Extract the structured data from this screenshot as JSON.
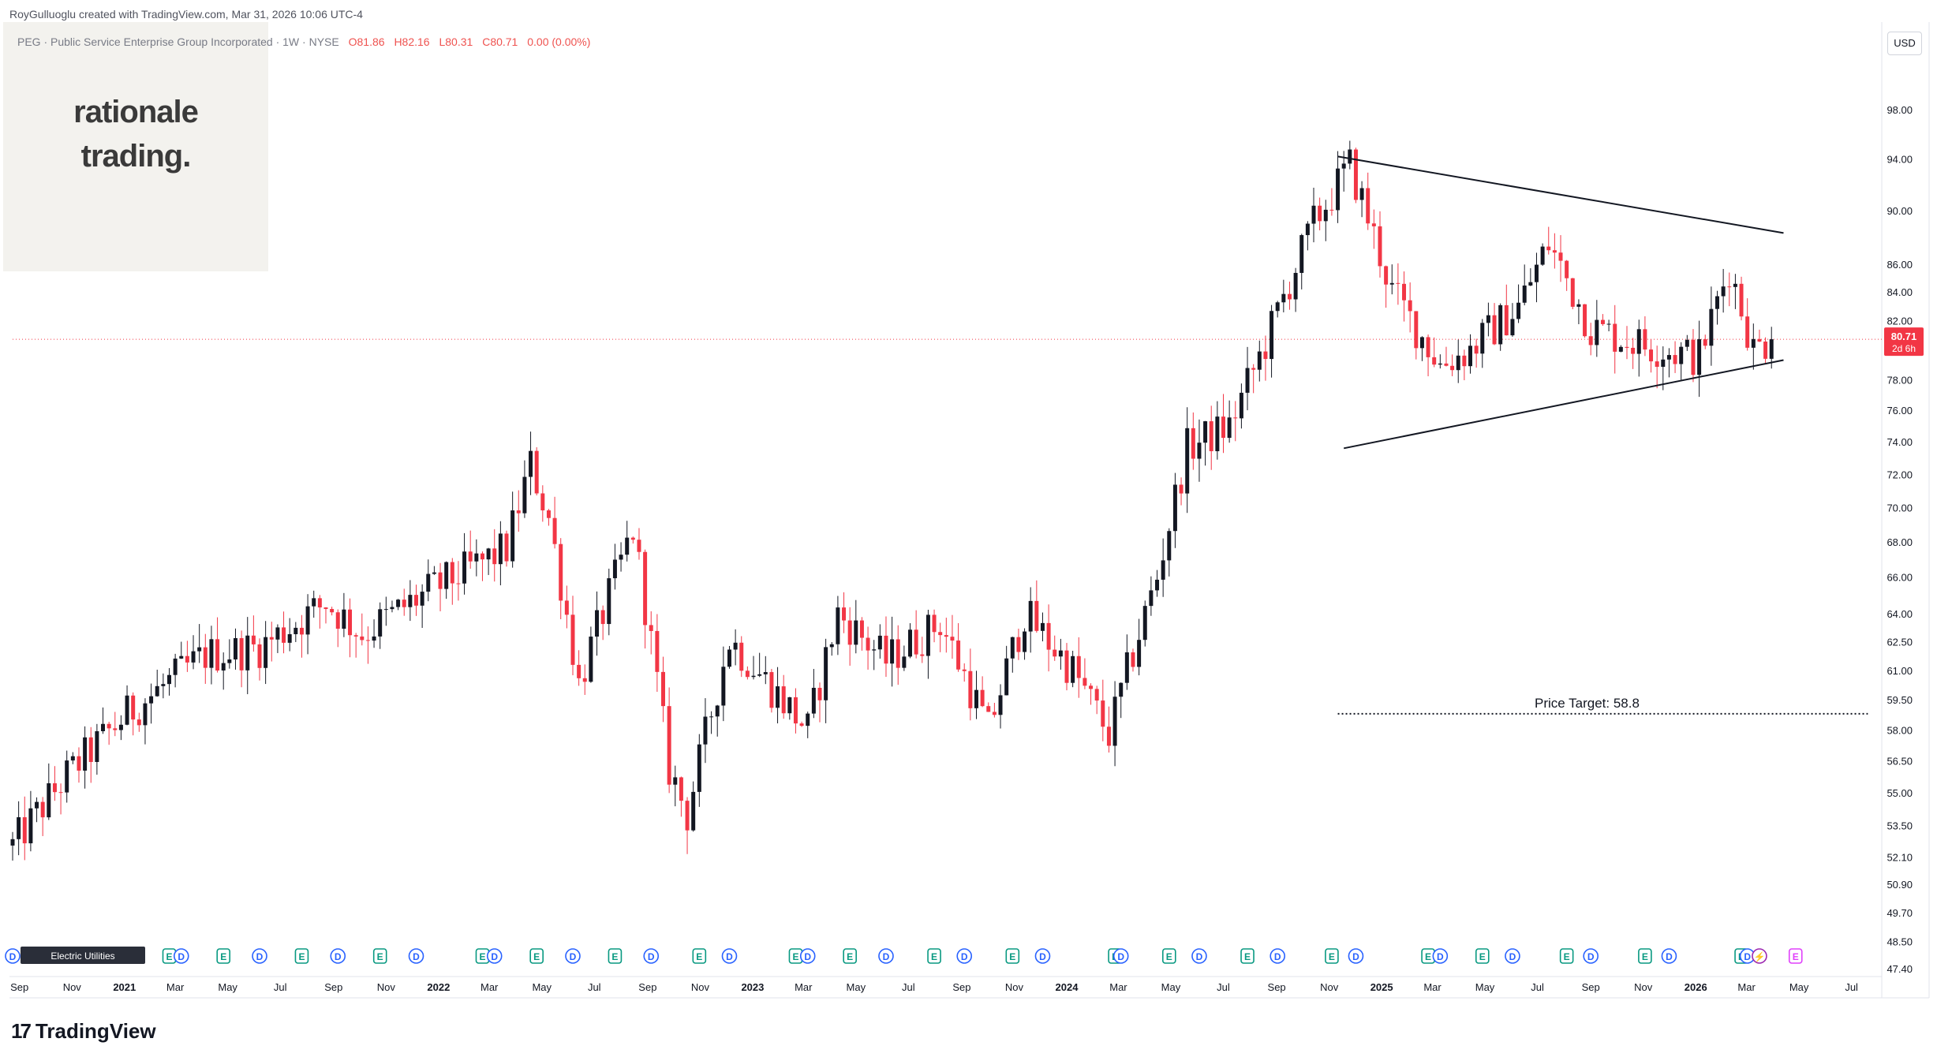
{
  "header": {
    "credit": "RoyGulluoglu created with TradingView.com, Mar 31, 2026 10:06 UTC-4",
    "symbol": "PEG · Public Service Enterprise Group Incorporated · 1W · NYSE",
    "ohlc": {
      "o": "O81.86",
      "h": "H82.16",
      "l": "L80.31",
      "c": "C80.71",
      "chg": "0.00 (0.00%)"
    }
  },
  "logo": {
    "line1": "rationale",
    "line2": "trading."
  },
  "currency": "USD",
  "price_badge": {
    "price": "80.71",
    "countdown": "2d 6h"
  },
  "footer": {
    "brand": "TradingView"
  },
  "events_label": "Electric Utilities",
  "annotation": {
    "text": "Price Target: 58.8"
  },
  "colors": {
    "up": "#131722",
    "down": "#f23645",
    "line": "#131722",
    "current": "#f23645"
  },
  "chart_data": {
    "type": "candlestick",
    "title": "",
    "xlabel": "",
    "ylabel": "",
    "ylim": [
      47.4,
      104.0
    ],
    "y_scale": "log",
    "grid": false,
    "y_ticks": [
      98.0,
      94.0,
      90.0,
      86.0,
      84.0,
      82.0,
      80.0,
      78.0,
      76.0,
      74.0,
      72.0,
      70.0,
      68.0,
      66.0,
      64.0,
      62.5,
      61.0,
      59.5,
      58.0,
      56.5,
      55.0,
      53.5,
      52.1,
      50.9,
      49.7,
      48.5,
      47.4
    ],
    "x_ticks": [
      "Sep",
      "Nov",
      "2021",
      "Mar",
      "May",
      "Jul",
      "Sep",
      "Nov",
      "2022",
      "Mar",
      "May",
      "Jul",
      "Sep",
      "Nov",
      "2023",
      "Mar",
      "May",
      "Jul",
      "Sep",
      "Nov",
      "2024",
      "Mar",
      "May",
      "Jul",
      "Sep",
      "Nov",
      "2025",
      "Mar",
      "May",
      "Jul",
      "Sep",
      "Nov",
      "2026",
      "Mar",
      "May",
      "Jul"
    ],
    "x_domain": [
      "2020-08-24",
      "2026-07-27"
    ],
    "anchors": [
      {
        "date": "2020-08-24",
        "close": 52.6
      },
      {
        "date": "2020-10-26",
        "close": 55.8
      },
      {
        "date": "2021-01-04",
        "close": 58.8
      },
      {
        "date": "2021-04-05",
        "close": 61.8
      },
      {
        "date": "2021-06-07",
        "close": 62.2
      },
      {
        "date": "2021-08-23",
        "close": 64.6
      },
      {
        "date": "2021-10-04",
        "close": 62.9
      },
      {
        "date": "2021-12-20",
        "close": 65.2
      },
      {
        "date": "2022-03-21",
        "close": 67.6
      },
      {
        "date": "2022-04-18",
        "close": 72.6
      },
      {
        "date": "2022-05-09",
        "close": 69.4
      },
      {
        "date": "2022-06-13",
        "close": 60.3
      },
      {
        "date": "2022-08-15",
        "close": 68.7
      },
      {
        "date": "2022-09-26",
        "close": 56.1
      },
      {
        "date": "2022-10-17",
        "close": 54.0
      },
      {
        "date": "2022-12-05",
        "close": 62.6
      },
      {
        "date": "2023-03-06",
        "close": 58.0
      },
      {
        "date": "2023-04-10",
        "close": 64.0
      },
      {
        "date": "2023-06-05",
        "close": 61.5
      },
      {
        "date": "2023-08-07",
        "close": 63.5
      },
      {
        "date": "2023-10-02",
        "close": 58.0
      },
      {
        "date": "2023-11-13",
        "close": 64.0
      },
      {
        "date": "2024-01-08",
        "close": 61.0
      },
      {
        "date": "2024-02-19",
        "close": 57.8
      },
      {
        "date": "2024-04-15",
        "close": 66.0
      },
      {
        "date": "2024-05-20",
        "close": 73.6
      },
      {
        "date": "2024-07-08",
        "close": 75.0
      },
      {
        "date": "2024-08-19",
        "close": 80.4
      },
      {
        "date": "2024-10-14",
        "close": 89.0
      },
      {
        "date": "2024-11-25",
        "close": 93.5
      },
      {
        "date": "2025-01-13",
        "close": 84.0
      },
      {
        "date": "2025-03-10",
        "close": 79.0
      },
      {
        "date": "2025-04-14",
        "close": 80.0
      },
      {
        "date": "2025-06-09",
        "close": 83.0
      },
      {
        "date": "2025-07-14",
        "close": 87.5
      },
      {
        "date": "2025-09-01",
        "close": 81.5
      },
      {
        "date": "2025-11-03",
        "close": 80.3
      },
      {
        "date": "2026-01-05",
        "close": 79.5
      },
      {
        "date": "2026-02-09",
        "close": 85.8
      },
      {
        "date": "2026-03-09",
        "close": 80.0
      },
      {
        "date": "2026-03-30",
        "close": 80.71
      }
    ],
    "current_price": 80.71,
    "trendlines": [
      {
        "from": {
          "date": "2024-11-11",
          "price": 94.2
        },
        "to": {
          "date": "2026-04-13",
          "price": 88.3
        }
      },
      {
        "from": {
          "date": "2024-11-18",
          "price": 73.6
        },
        "to": {
          "date": "2026-04-13",
          "price": 79.3
        }
      }
    ],
    "price_target": {
      "from_date": "2024-11-11",
      "to_date": "2026-07-20",
      "price": 58.8
    }
  },
  "events": {
    "items": [
      {
        "date": "2020-08-24",
        "type": "D"
      },
      {
        "date": "2020-10-12",
        "type": "E"
      },
      {
        "date": "2020-11-30",
        "type": "D"
      },
      {
        "date": "2021-02-22",
        "type": "E"
      },
      {
        "date": "2021-03-08",
        "type": "D"
      },
      {
        "date": "2021-04-26",
        "type": "E"
      },
      {
        "date": "2021-06-07",
        "type": "D"
      },
      {
        "date": "2021-07-26",
        "type": "E"
      },
      {
        "date": "2021-09-06",
        "type": "D"
      },
      {
        "date": "2021-10-25",
        "type": "E"
      },
      {
        "date": "2021-12-06",
        "type": "D"
      },
      {
        "date": "2022-02-21",
        "type": "E"
      },
      {
        "date": "2022-03-07",
        "type": "D"
      },
      {
        "date": "2022-04-25",
        "type": "E"
      },
      {
        "date": "2022-06-06",
        "type": "D"
      },
      {
        "date": "2022-07-25",
        "type": "E"
      },
      {
        "date": "2022-09-05",
        "type": "D"
      },
      {
        "date": "2022-10-31",
        "type": "E"
      },
      {
        "date": "2022-12-05",
        "type": "D"
      },
      {
        "date": "2023-02-20",
        "type": "E"
      },
      {
        "date": "2023-03-06",
        "type": "D"
      },
      {
        "date": "2023-04-24",
        "type": "E"
      },
      {
        "date": "2023-06-05",
        "type": "D"
      },
      {
        "date": "2023-07-31",
        "type": "E"
      },
      {
        "date": "2023-09-04",
        "type": "D"
      },
      {
        "date": "2023-10-30",
        "type": "E"
      },
      {
        "date": "2023-12-04",
        "type": "D"
      },
      {
        "date": "2024-02-26",
        "type": "E"
      },
      {
        "date": "2024-03-04",
        "type": "D"
      },
      {
        "date": "2024-04-29",
        "type": "E"
      },
      {
        "date": "2024-06-03",
        "type": "D"
      },
      {
        "date": "2024-07-29",
        "type": "E"
      },
      {
        "date": "2024-09-02",
        "type": "D"
      },
      {
        "date": "2024-11-04",
        "type": "E"
      },
      {
        "date": "2024-12-02",
        "type": "D"
      },
      {
        "date": "2025-02-24",
        "type": "E"
      },
      {
        "date": "2025-03-10",
        "type": "D"
      },
      {
        "date": "2025-04-28",
        "type": "E"
      },
      {
        "date": "2025-06-02",
        "type": "D"
      },
      {
        "date": "2025-08-04",
        "type": "E"
      },
      {
        "date": "2025-09-01",
        "type": "D"
      },
      {
        "date": "2025-11-03",
        "type": "E"
      },
      {
        "date": "2025-12-01",
        "type": "D"
      },
      {
        "date": "2026-02-23",
        "type": "E"
      },
      {
        "date": "2026-03-02",
        "type": "D"
      },
      {
        "date": "2026-03-16",
        "type": "S"
      },
      {
        "date": "2026-04-27",
        "type": "E"
      }
    ]
  }
}
